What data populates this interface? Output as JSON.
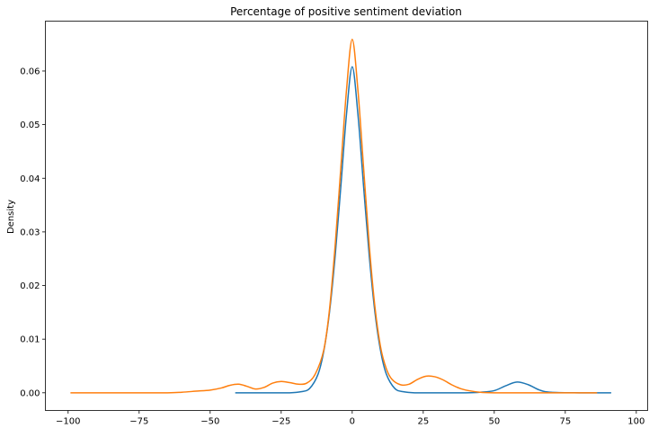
{
  "chart_data": {
    "type": "line",
    "title": "Percentage of positive sentiment deviation",
    "xlabel": "",
    "ylabel": "Density",
    "xlim": [
      -108,
      104
    ],
    "ylim": [
      -0.0033,
      0.0693
    ],
    "grid": false,
    "legend": "none",
    "x_ticks": [
      -100,
      -75,
      -50,
      -25,
      0,
      25,
      50,
      75,
      100
    ],
    "x_tick_labels": [
      "−100",
      "−75",
      "−50",
      "−25",
      "0",
      "25",
      "50",
      "75",
      "100"
    ],
    "y_ticks": [
      0.0,
      0.01,
      0.02,
      0.03,
      0.04,
      0.05,
      0.06
    ],
    "y_tick_labels": [
      "0.00",
      "0.01",
      "0.02",
      "0.03",
      "0.04",
      "0.05",
      "0.06"
    ],
    "series": [
      {
        "color": "#1f77b4",
        "x": [
          -41,
          -30,
          -22,
          -18,
          -15,
          -12,
          -10,
          -8,
          -6,
          -4,
          -2,
          0,
          2,
          4,
          6,
          8,
          10,
          12,
          15,
          18,
          22,
          30,
          40,
          45,
          50,
          54,
          58,
          62,
          66,
          70,
          80,
          91
        ],
        "y": [
          0.0,
          0.0,
          0.0,
          0.0002,
          0.0008,
          0.0035,
          0.0078,
          0.015,
          0.0255,
          0.0385,
          0.052,
          0.0608,
          0.052,
          0.0385,
          0.0255,
          0.015,
          0.0078,
          0.0035,
          0.0008,
          0.0002,
          0.0,
          0.0,
          0.0,
          0.0001,
          0.0004,
          0.0013,
          0.002,
          0.0015,
          0.0005,
          0.0001,
          0.0,
          0.0
        ]
      },
      {
        "color": "#ff7f0e",
        "x": [
          -99,
          -80,
          -65,
          -60,
          -55,
          -50,
          -46,
          -43,
          -40,
          -37,
          -34,
          -31,
          -28,
          -25,
          -22,
          -19,
          -16,
          -13,
          -10,
          -8,
          -6,
          -4,
          -2,
          0,
          2,
          4,
          6,
          8,
          10,
          12,
          14,
          17,
          20,
          23,
          26,
          29,
          32,
          35,
          38,
          41,
          45,
          50,
          60,
          70,
          86
        ],
        "y": [
          0.0,
          0.0,
          0.0,
          0.0001,
          0.0003,
          0.0005,
          0.0009,
          0.0014,
          0.0016,
          0.0012,
          0.0007,
          0.001,
          0.0018,
          0.0021,
          0.0019,
          0.0016,
          0.0018,
          0.0035,
          0.008,
          0.0155,
          0.0275,
          0.042,
          0.0565,
          0.0659,
          0.0565,
          0.042,
          0.0275,
          0.016,
          0.0085,
          0.0045,
          0.0025,
          0.0015,
          0.0016,
          0.0025,
          0.0031,
          0.003,
          0.0024,
          0.0015,
          0.0008,
          0.0004,
          0.0001,
          0.0,
          0.0,
          0.0,
          0.0
        ]
      }
    ]
  }
}
